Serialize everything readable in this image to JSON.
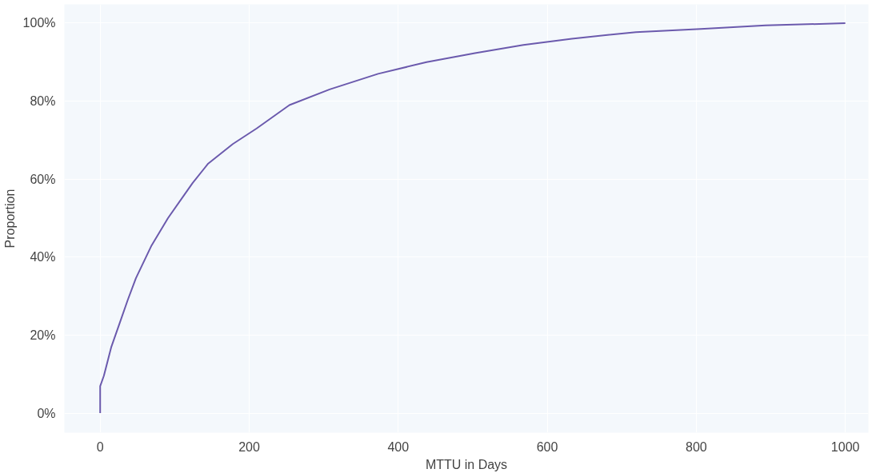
{
  "chart_data": {
    "type": "line",
    "xlabel": "MTTU in Days",
    "ylabel": "Proportion",
    "x": [
      0,
      0,
      5,
      15,
      26,
      37,
      48,
      69,
      91,
      124,
      145,
      178,
      210,
      254,
      308,
      373,
      438,
      503,
      568,
      633,
      719,
      806,
      893,
      1000
    ],
    "series": [
      {
        "color": "#6b5aad",
        "values": [
          0,
          0.069,
          0.096,
          0.17,
          0.23,
          0.29,
          0.346,
          0.43,
          0.5,
          0.59,
          0.64,
          0.69,
          0.73,
          0.79,
          0.83,
          0.87,
          0.9,
          0.923,
          0.944,
          0.96,
          0.977,
          0.985,
          0.994,
          1.0
        ]
      }
    ],
    "xlim": [
      -48,
      1031
    ],
    "ylim": [
      -0.05,
      1.048
    ],
    "xticks": [
      0,
      200,
      400,
      600,
      800,
      1000
    ],
    "yticks": [
      {
        "value": 0,
        "label": "0%"
      },
      {
        "value": 0.2,
        "label": "20%"
      },
      {
        "value": 0.4,
        "label": "40%"
      },
      {
        "value": 0.6,
        "label": "60%"
      },
      {
        "value": 0.8,
        "label": "80%"
      },
      {
        "value": 1.0,
        "label": "100%"
      }
    ],
    "grid": true,
    "marker": "none",
    "line_style": "solid"
  }
}
